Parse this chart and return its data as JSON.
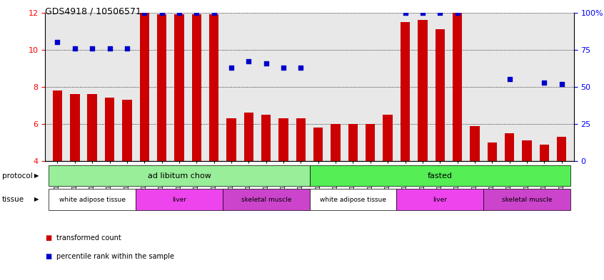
{
  "title": "GDS4918 / 10506571",
  "samples": [
    "GSM1131278",
    "GSM1131279",
    "GSM1131280",
    "GSM1131281",
    "GSM1131282",
    "GSM1131283",
    "GSM1131284",
    "GSM1131285",
    "GSM1131286",
    "GSM1131287",
    "GSM1131288",
    "GSM1131289",
    "GSM1131290",
    "GSM1131291",
    "GSM1131292",
    "GSM1131293",
    "GSM1131294",
    "GSM1131295",
    "GSM1131296",
    "GSM1131297",
    "GSM1131298",
    "GSM1131299",
    "GSM1131300",
    "GSM1131301",
    "GSM1131302",
    "GSM1131303",
    "GSM1131304",
    "GSM1131305",
    "GSM1131306",
    "GSM1131307"
  ],
  "bar_values": [
    7.8,
    7.6,
    7.6,
    7.4,
    7.3,
    12.0,
    11.9,
    11.9,
    11.9,
    11.9,
    6.3,
    6.6,
    6.5,
    6.3,
    6.3,
    5.8,
    6.0,
    6.0,
    6.0,
    6.5,
    11.5,
    11.6,
    11.1,
    12.0,
    5.9,
    5.0,
    5.5,
    5.1,
    4.9,
    5.3
  ],
  "dot_values": [
    80,
    76,
    76,
    76,
    76,
    100,
    100,
    100,
    100,
    100,
    63,
    67,
    66,
    63,
    63,
    null,
    null,
    null,
    null,
    null,
    100,
    100,
    100,
    100,
    null,
    null,
    55,
    null,
    53,
    52
  ],
  "ylim_left": [
    4,
    12
  ],
  "ylim_right": [
    0,
    100
  ],
  "yticks_left": [
    4,
    6,
    8,
    10,
    12
  ],
  "yticks_right": [
    0,
    25,
    50,
    75,
    100
  ],
  "ytick_right_labels": [
    "0",
    "25",
    "50",
    "75",
    "100%"
  ],
  "bar_color": "#cc0000",
  "dot_color": "#0000cc",
  "bar_bottom": 4,
  "protocol_groups": [
    {
      "label": "ad libitum chow",
      "start": 0,
      "end": 14,
      "color": "#99ee99"
    },
    {
      "label": "fasted",
      "start": 15,
      "end": 29,
      "color": "#55ee55"
    }
  ],
  "tissue_groups": [
    {
      "label": "white adipose tissue",
      "start": 0,
      "end": 4,
      "color": "#ffffff"
    },
    {
      "label": "liver",
      "start": 5,
      "end": 9,
      "color": "#ee55ee"
    },
    {
      "label": "skeletal muscle",
      "start": 10,
      "end": 14,
      "color": "#ee55ee"
    },
    {
      "label": "white adipose tissue",
      "start": 15,
      "end": 19,
      "color": "#ffffff"
    },
    {
      "label": "liver",
      "start": 20,
      "end": 24,
      "color": "#ee55ee"
    },
    {
      "label": "skeletal muscle",
      "start": 25,
      "end": 29,
      "color": "#ee55ee"
    }
  ],
  "legend_bar_label": "transformed count",
  "legend_dot_label": "percentile rank within the sample",
  "protocol_label": "protocol",
  "tissue_label": "tissue",
  "bg_color": "#e8e8e8"
}
